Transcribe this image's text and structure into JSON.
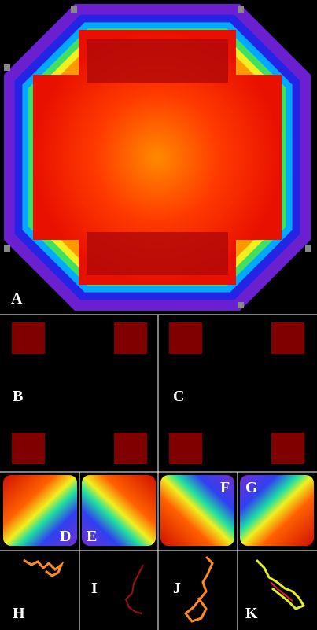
{
  "panels": {
    "a": "A",
    "b": "B",
    "c": "C",
    "d": "D",
    "e": "E",
    "f": "F",
    "g": "G",
    "h": "H",
    "i": "I",
    "j": "J",
    "k": "K"
  }
}
